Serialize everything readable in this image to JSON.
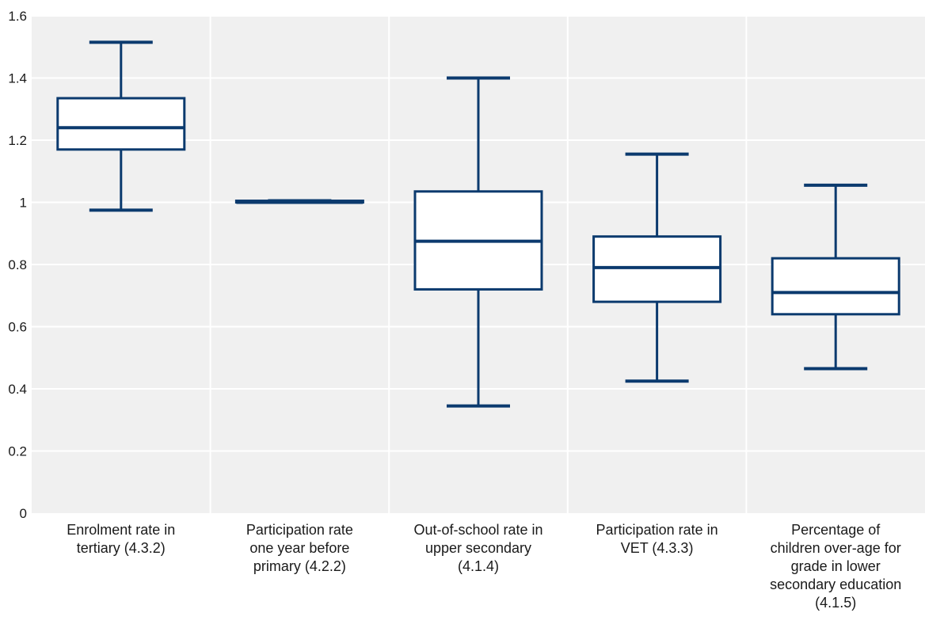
{
  "colors": {
    "plot_bg": "#f0f0f0",
    "grid": "#ffffff",
    "box_stroke": "#0b3a6e",
    "box_fill": "#ffffff"
  },
  "chart_data": {
    "type": "boxplot",
    "ylim": [
      0,
      1.6
    ],
    "yticks": [
      0,
      0.2,
      0.4,
      0.6,
      0.8,
      1,
      1.2,
      1.4,
      1.6
    ],
    "ytick_labels": [
      "0",
      "0.2",
      "0.4",
      "0.6",
      "0.8",
      "1",
      "1.2",
      "1.4",
      "1.6"
    ],
    "grid": true,
    "categories": [
      [
        "Enrolment rate in",
        "tertiary (4.3.2)"
      ],
      [
        "Participation rate",
        "one year before",
        "primary (4.2.2)"
      ],
      [
        "Out-of-school rate in",
        "upper secondary",
        "(4.1.4)"
      ],
      [
        "Participation rate in",
        "VET (4.3.3)"
      ],
      [
        "Percentage of",
        "children over-age for",
        "grade in lower",
        "secondary education",
        "(4.1.5)"
      ]
    ],
    "boxes": [
      {
        "min": 0.975,
        "q1": 1.17,
        "median": 1.24,
        "q3": 1.335,
        "max": 1.515
      },
      {
        "min": 1.0,
        "q1": 1.0,
        "median": 1.0,
        "q3": 1.005,
        "max": 1.005
      },
      {
        "min": 0.345,
        "q1": 0.72,
        "median": 0.875,
        "q3": 1.035,
        "max": 1.4
      },
      {
        "min": 0.425,
        "q1": 0.68,
        "median": 0.79,
        "q3": 0.89,
        "max": 1.155
      },
      {
        "min": 0.465,
        "q1": 0.64,
        "median": 0.71,
        "q3": 0.82,
        "max": 1.055
      }
    ]
  }
}
